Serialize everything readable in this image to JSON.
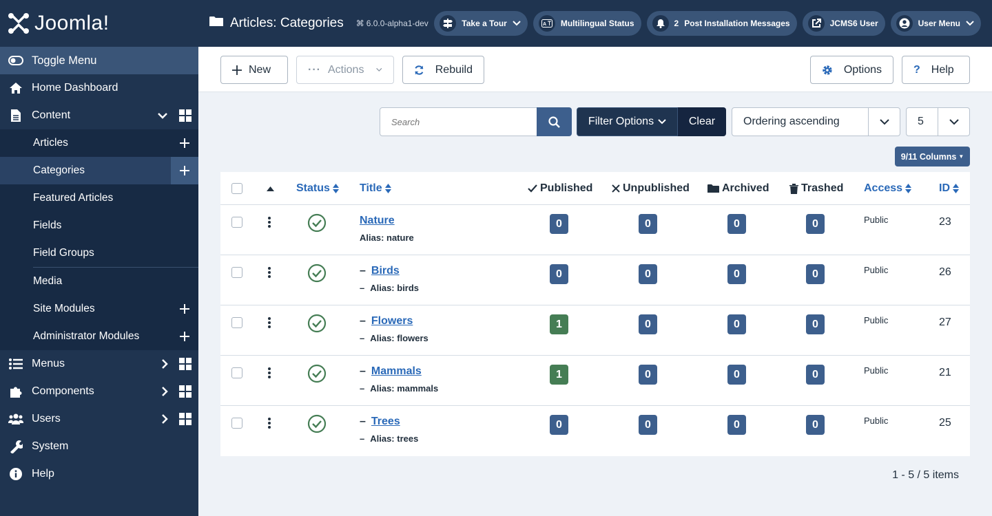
{
  "sidebar": {
    "logo": "Joomla!",
    "toggle": "Toggle Menu",
    "items": [
      {
        "label": "Home Dashboard"
      },
      {
        "label": "Content"
      },
      {
        "label": "Menus"
      },
      {
        "label": "Components"
      },
      {
        "label": "Users"
      },
      {
        "label": "System"
      },
      {
        "label": "Help"
      }
    ],
    "content_sub": [
      {
        "label": "Articles"
      },
      {
        "label": "Categories"
      },
      {
        "label": "Featured Articles"
      },
      {
        "label": "Fields"
      },
      {
        "label": "Field Groups"
      },
      {
        "label": "Media"
      },
      {
        "label": "Site Modules"
      },
      {
        "label": "Administrator Modules"
      }
    ]
  },
  "header": {
    "title": "Articles: Categories",
    "version": "6.0.0-alpha1-dev",
    "pills": {
      "tour": "Take a Tour",
      "multilingual": "Multilingual Status",
      "post_count": "2",
      "post_messages": "Post Installation Messages",
      "user_site": "JCMS6 User",
      "user_menu": "User Menu"
    }
  },
  "toolbar": {
    "new": "New",
    "actions": "Actions",
    "rebuild": "Rebuild",
    "options": "Options",
    "help": "Help"
  },
  "filters": {
    "search_placeholder": "Search",
    "filter_options": "Filter Options",
    "clear": "Clear",
    "ordering": "Ordering ascending",
    "limit": "5",
    "columns": "9/11 Columns"
  },
  "table": {
    "headers": {
      "status": "Status",
      "title": "Title",
      "published": "Published",
      "unpublished": "Unpublished",
      "archived": "Archived",
      "trashed": "Trashed",
      "access": "Access",
      "id": "ID"
    },
    "rows": [
      {
        "title": "Nature",
        "alias": "Alias: nature",
        "published": "0",
        "unpublished": "0",
        "archived": "0",
        "trashed": "0",
        "access": "Public",
        "id": "23"
      },
      {
        "title": "Birds",
        "alias": "Alias: birds",
        "published": "0",
        "unpublished": "0",
        "archived": "0",
        "trashed": "0",
        "access": "Public",
        "id": "26"
      },
      {
        "title": "Flowers",
        "alias": "Alias: flowers",
        "published": "1",
        "unpublished": "0",
        "archived": "0",
        "trashed": "0",
        "access": "Public",
        "id": "27"
      },
      {
        "title": "Mammals",
        "alias": "Alias: mammals",
        "published": "1",
        "unpublished": "0",
        "archived": "0",
        "trashed": "0",
        "access": "Public",
        "id": "21"
      },
      {
        "title": "Trees",
        "alias": "Alias: trees",
        "published": "0",
        "unpublished": "0",
        "archived": "0",
        "trashed": "0",
        "access": "Public",
        "id": "25"
      }
    ]
  },
  "pagination": {
    "info": "1 - 5 / 5 items"
  },
  "colors": {
    "sidebar": "#1f3450",
    "accent": "#2a69b8",
    "badge": "#3d5f8d",
    "badge_green": "#457d54"
  }
}
